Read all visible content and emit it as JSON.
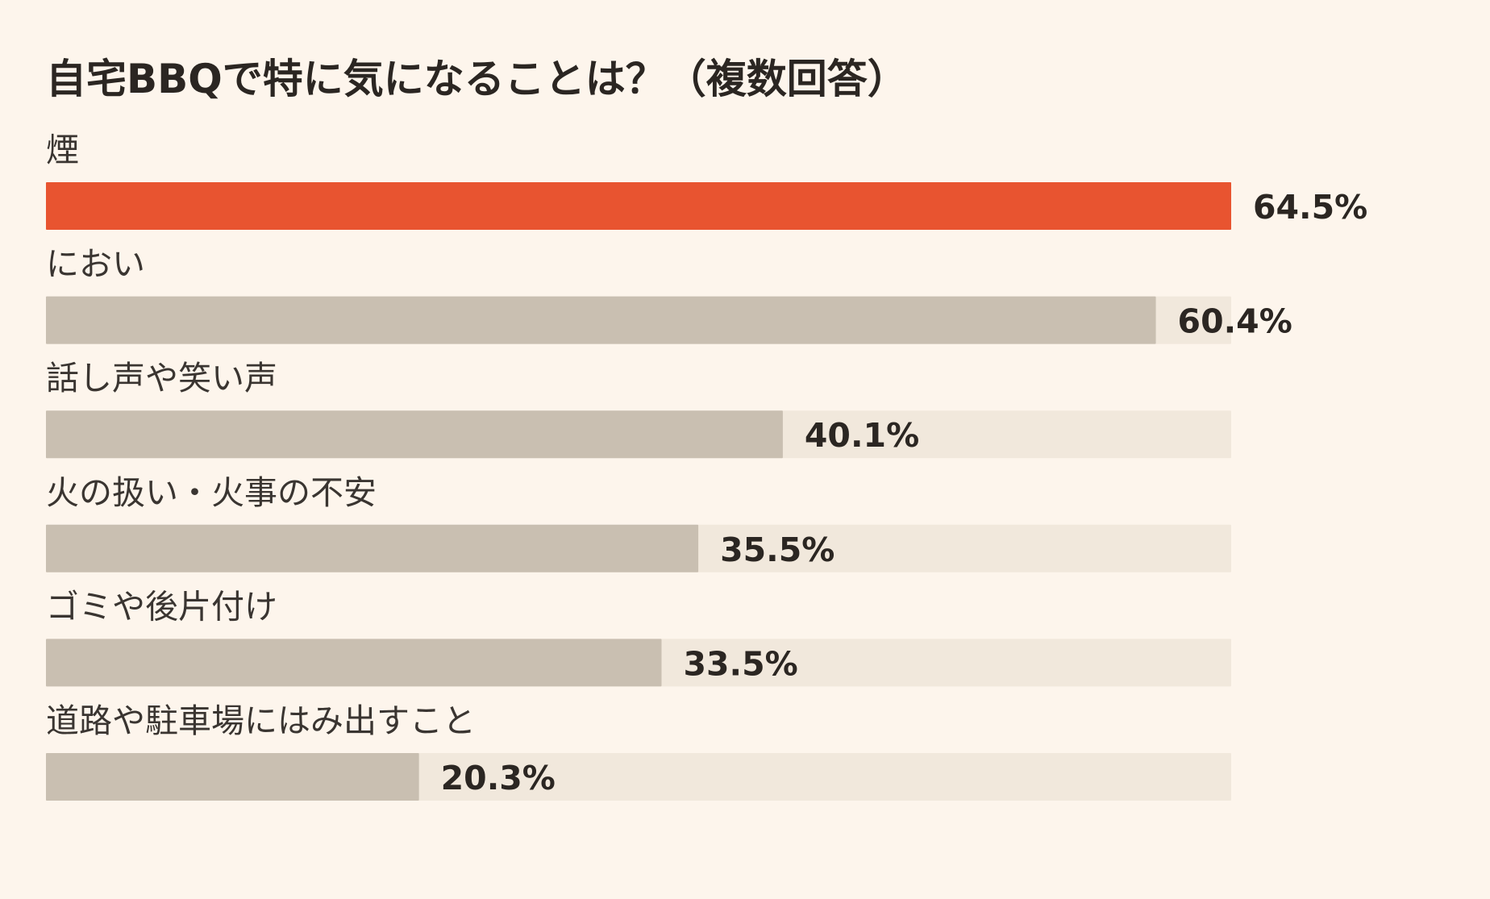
{
  "chart_data": {
    "type": "bar",
    "orientation": "horizontal",
    "title": "自宅BBQで特に気になることは？（複数回答）",
    "categories": [
      "煙",
      "におい",
      "話し声や笑い声",
      "火の扱い・火事の不安",
      "ゴミや後片付け",
      "道路や駐車場にはみ出すこと"
    ],
    "values": [
      64.5,
      60.4,
      40.1,
      35.5,
      33.5,
      20.3
    ],
    "value_labels": [
      "64.5%",
      "60.4%",
      "40.1%",
      "35.5%",
      "33.5%",
      "20.3%"
    ],
    "xlim": [
      0,
      64.5
    ],
    "grid": false,
    "legend": "none",
    "highlight_index": 0,
    "colors": {
      "background": "#fdf5ec",
      "track": "#f1e8dc",
      "bar": "#c9bfb1",
      "highlight": "#e85430",
      "text": "#2b2622"
    }
  }
}
